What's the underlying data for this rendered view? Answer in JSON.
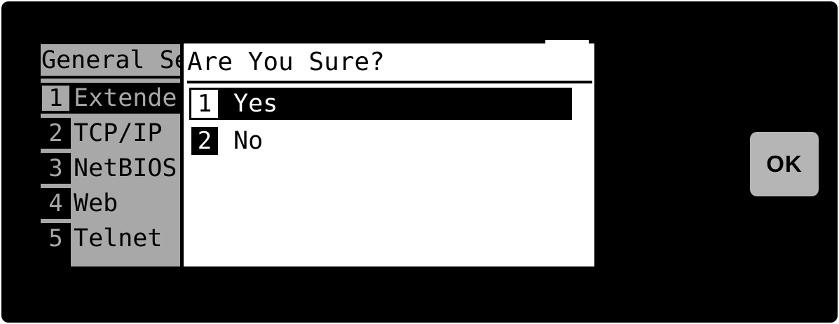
{
  "panel": {
    "title": "General Se",
    "items": [
      {
        "number": "1",
        "label": "Extende",
        "selected": true
      },
      {
        "number": "2",
        "label": "TCP/IP",
        "selected": false
      },
      {
        "number": "3",
        "label": "NetBIOS",
        "selected": false
      },
      {
        "number": "4",
        "label": "Web",
        "selected": false
      },
      {
        "number": "5",
        "label": "Telnet",
        "selected": false
      }
    ]
  },
  "dialog": {
    "title": "Are You Sure?",
    "options": [
      {
        "number": "1",
        "label": "Yes",
        "selected": true
      },
      {
        "number": "2",
        "label": "No",
        "selected": false
      }
    ]
  },
  "ok": {
    "label": "OK"
  },
  "colors": {
    "screen_bg": "#000000",
    "panel_gray": "#a8a8a8",
    "dialog_bg": "#ffffff",
    "highlight": "#000000",
    "ok_button_bg": "#b5b5b5"
  }
}
